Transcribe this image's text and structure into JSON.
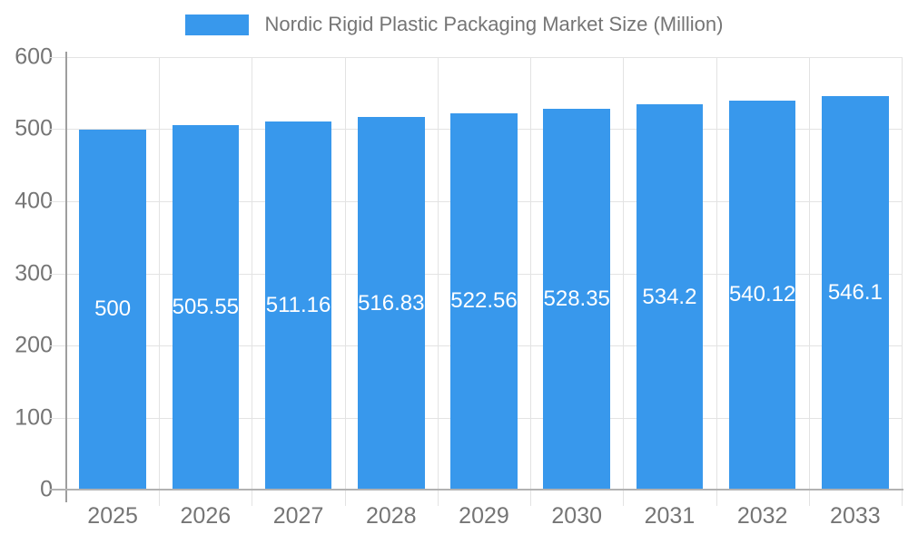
{
  "chart_data": {
    "type": "bar",
    "title": "Nordic Rigid Plastic Packaging Market Size (Million)",
    "categories": [
      "2025",
      "2026",
      "2027",
      "2028",
      "2029",
      "2030",
      "2031",
      "2032",
      "2033"
    ],
    "values": [
      500,
      505.55,
      511.16,
      516.83,
      522.56,
      528.35,
      534.2,
      540.12,
      546.1
    ],
    "xlabel": "",
    "ylabel": "",
    "ylim": [
      0,
      600
    ],
    "yticks": [
      0,
      100,
      200,
      300,
      400,
      500,
      600
    ],
    "grid": true,
    "legend_position": "top",
    "colors": {
      "bar": "#3898ec",
      "axis_label": "#757575",
      "gridline": "#e3e3e3",
      "y_axis_line": "#9e9e9e",
      "x_axis_line": "#b2b2b2",
      "value_label": "#ffffff",
      "background": "#ffffff"
    }
  }
}
